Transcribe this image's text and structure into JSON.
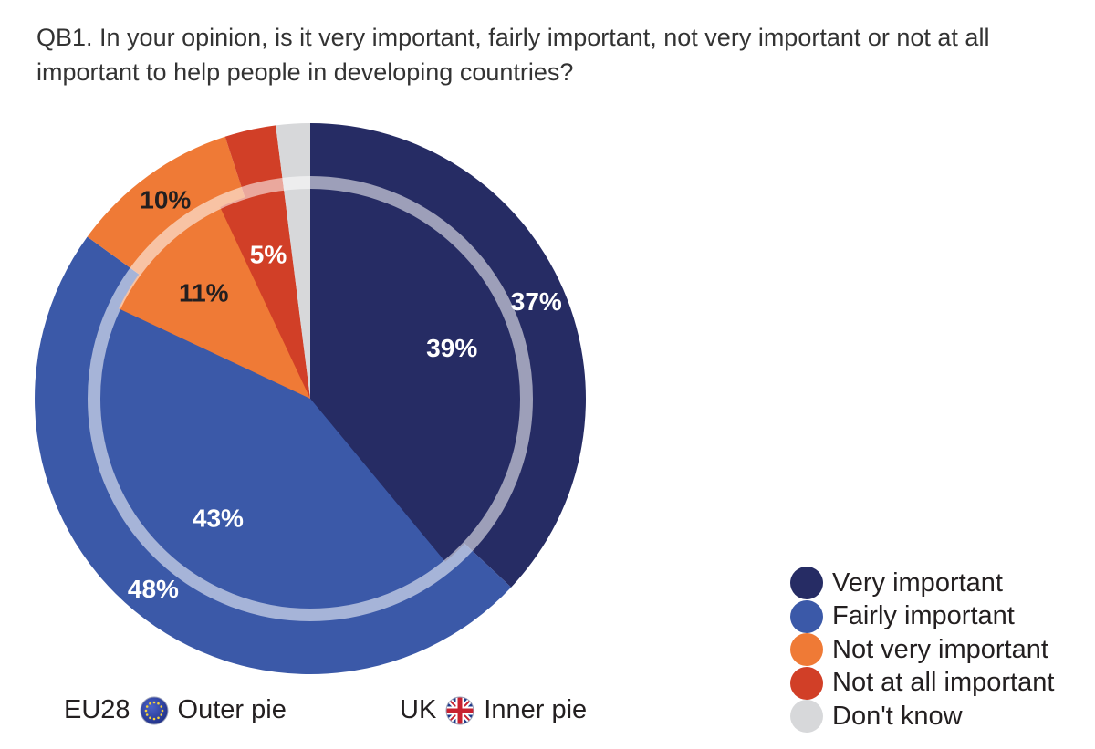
{
  "title": "QB1. In your opinion, is it very important, fairly important, not very important or not at all important to help people in developing countries?",
  "chart_data": {
    "type": "pie",
    "subtype": "nested-donut",
    "categories": [
      "Very important",
      "Fairly important",
      "Not very important",
      "Not at all important",
      "Don't know"
    ],
    "colors": [
      "#262c64",
      "#3b59a8",
      "#ef7a36",
      "#d13f27",
      "#d7d8da"
    ],
    "series": [
      {
        "name": "EU28",
        "ring": "outer",
        "values": [
          37,
          48,
          10,
          3,
          2
        ],
        "labels": [
          "37%",
          "48%",
          "10%",
          "",
          ""
        ]
      },
      {
        "name": "UK",
        "ring": "inner",
        "values": [
          39,
          43,
          11,
          5,
          2
        ],
        "labels": [
          "39%",
          "43%",
          "11%",
          "5%",
          ""
        ]
      }
    ],
    "legend_position": "bottom-right"
  },
  "legend": [
    {
      "label": "Very important",
      "color": "#262c64"
    },
    {
      "label": "Fairly important",
      "color": "#3b59a8"
    },
    {
      "label": "Not very important",
      "color": "#ef7a36"
    },
    {
      "label": "Not at all important",
      "color": "#d13f27"
    },
    {
      "label": "Don't know",
      "color": "#d7d8da"
    }
  ],
  "pie_key": {
    "outer": {
      "code": "EU28",
      "label": "Outer pie",
      "flag_icon": "eu-flag-icon"
    },
    "inner": {
      "code": "UK",
      "label": "Inner pie",
      "flag_icon": "uk-flag-icon"
    }
  }
}
